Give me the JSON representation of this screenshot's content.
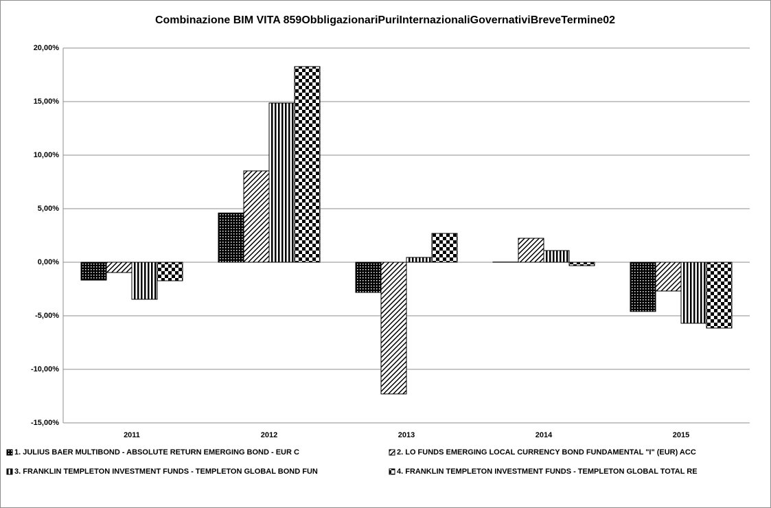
{
  "chart_data": {
    "type": "bar",
    "title": "Combinazione BIM VITA 859ObbligazionariPuriInternazionaliGovernativiBreveTermine02",
    "categories": [
      "2011",
      "2012",
      "2013",
      "2014",
      "2015"
    ],
    "series": [
      {
        "name": "1. JULIUS BAER MULTIBOND - ABSOLUTE RETURN EMERGING BOND - EUR C",
        "color": "#000000",
        "values": [
          -1.67,
          4.6,
          -2.82,
          0.02,
          -4.6
        ]
      },
      {
        "name": "2. LO FUNDS EMERGING LOCAL CURRENCY BOND FUNDAMENTAL \"I\" (EUR) ACC",
        "color": "#000000",
        "values": [
          -0.96,
          8.53,
          -12.3,
          2.24,
          -2.69
        ]
      },
      {
        "name": "3. FRANKLIN TEMPLETON INVESTMENT FUNDS - TEMPLETON GLOBAL BOND FUN",
        "color": "#000000",
        "values": [
          -3.46,
          14.87,
          0.45,
          1.09,
          -5.7
        ]
      },
      {
        "name": "4. FRANKLIN TEMPLETON INVESTMENT FUNDS - TEMPLETON GLOBAL TOTAL RE",
        "color": "#000000",
        "values": [
          -1.73,
          18.27,
          2.69,
          -0.32,
          -6.15
        ]
      }
    ],
    "ylim": [
      -15,
      20
    ],
    "yticks": [
      {
        "value": -15,
        "label": "-15,00%"
      },
      {
        "value": -10,
        "label": "-10,00%"
      },
      {
        "value": -5,
        "label": "-5,00%"
      },
      {
        "value": 0,
        "label": "0,00%"
      },
      {
        "value": 5,
        "label": "5,00%"
      },
      {
        "value": 10,
        "label": "10,00%"
      },
      {
        "value": 15,
        "label": "15,00%"
      },
      {
        "value": 20,
        "label": "20,00%"
      }
    ],
    "grid": true
  }
}
